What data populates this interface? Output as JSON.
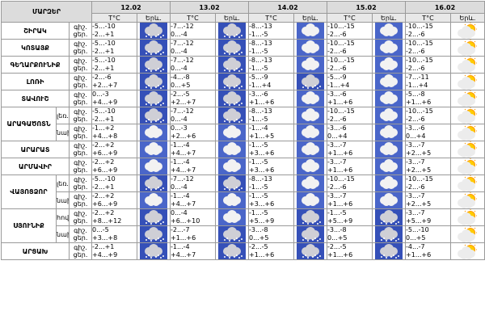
{
  "header": {
    "corner": "ՄԱՐԶԵՐ",
    "temp_label": "T°C",
    "weather_label": "Երև.",
    "dates": [
      "12.02",
      "13.02",
      "14.02",
      "15.02",
      "16.02"
    ]
  },
  "rows": [
    {
      "region": "ՇԻՐԱԿ",
      "sub": "",
      "parts": [
        "գիշ.",
        "ցեր."
      ],
      "days": [
        {
          "night": "-5...-10",
          "day": "-2...+1",
          "icon": "snow-cloud-icon"
        },
        {
          "night": "-7...-12",
          "day": "0...-4",
          "icon": "snow-cloud-icon"
        },
        {
          "night": "-8...-13",
          "day": "-1...-5",
          "icon": "cloud-icon"
        },
        {
          "night": "-10...-15",
          "day": "-2...-6",
          "icon": "cloud-icon"
        },
        {
          "night": "-10...-15",
          "day": "-2...-6",
          "icon": "sun-cloud-icon"
        }
      ]
    },
    {
      "region": "ԿՈՏԱՅՔ",
      "sub": "",
      "parts": [
        "գիշ.",
        "ցեր."
      ],
      "days": [
        {
          "night": "-5...-10",
          "day": "-2...+1",
          "icon": "snow-cloud-icon"
        },
        {
          "night": "-7...-12",
          "day": "0...-4",
          "icon": "snow-cloud-icon"
        },
        {
          "night": "-8...-13",
          "day": "-1...-5",
          "icon": "cloud-icon"
        },
        {
          "night": "-10...-15",
          "day": "-2...-6",
          "icon": "cloud-icon"
        },
        {
          "night": "-10...-15",
          "day": "-2...-6",
          "icon": "sun-cloud-icon"
        }
      ]
    },
    {
      "region": "ԳԵՂԱՐՔՈՒՆԻՔ",
      "sub": "",
      "parts": [
        "գիշ.",
        "ցեր."
      ],
      "days": [
        {
          "night": "-5...-10",
          "day": "-2...+1",
          "icon": "snow-cloud-icon"
        },
        {
          "night": "-7...-12",
          "day": "0...-4",
          "icon": "snow-cloud-icon"
        },
        {
          "night": "-8...-13",
          "day": "-1...-5",
          "icon": "cloud-icon"
        },
        {
          "night": "-10...-15",
          "day": "-2...-6",
          "icon": "cloud-icon"
        },
        {
          "night": "-10...-15",
          "day": "-2...-6",
          "icon": "sun-cloud-icon"
        }
      ]
    },
    {
      "region": "ԼՈՌԻ",
      "sub": "",
      "parts": [
        "գիշ.",
        "ցեր."
      ],
      "days": [
        {
          "night": "-2...-6",
          "day": "+2...+7",
          "icon": "snow-cloud-icon"
        },
        {
          "night": "-4...-8",
          "day": "0...+5",
          "icon": "snow-cloud-icon"
        },
        {
          "night": "-5...-9",
          "day": "-1...+4",
          "icon": "snow-cloud-icon"
        },
        {
          "night": "-5...-9",
          "day": "-1...+4",
          "icon": "cloud-icon"
        },
        {
          "night": "-7...-11",
          "day": "-1...+4",
          "icon": "sun-cloud-icon"
        }
      ]
    },
    {
      "region": "ՏԱՎՈՒՇ",
      "sub": "",
      "parts": [
        "գիշ.",
        "ցեր."
      ],
      "days": [
        {
          "night": "0...-3",
          "day": "+4...+9",
          "icon": "snow-cloud-icon"
        },
        {
          "night": "-2...-5",
          "day": "+2...+7",
          "icon": "snow-cloud-icon"
        },
        {
          "night": "-3...-6",
          "day": "+1...+6",
          "icon": "cloud-icon"
        },
        {
          "night": "-3...-6",
          "day": "+1...+6",
          "icon": "cloud-icon"
        },
        {
          "night": "-5...-8",
          "day": "+1...+6",
          "icon": "sun-cloud-icon"
        }
      ]
    },
    {
      "region": "ԱՐԱԳԱԾՈՏՆ",
      "sub": "լեռ.",
      "parts": [
        "գիշ.",
        "ցեր."
      ],
      "group_start": true,
      "group_span": 2,
      "days": [
        {
          "night": "-5...-10",
          "day": "-2...+1",
          "icon": "snow-cloud-icon"
        },
        {
          "night": "-7...-12",
          "day": "0...-4",
          "icon": "snow-cloud-icon"
        },
        {
          "night": "-8...-13",
          "day": "-1...-5",
          "icon": "cloud-icon"
        },
        {
          "night": "-10...-15",
          "day": "-2...-6",
          "icon": "cloud-icon"
        },
        {
          "night": "-10...-15",
          "day": "-2...-6",
          "icon": "sun-cloud-icon"
        }
      ]
    },
    {
      "region": "",
      "sub": "նախ.",
      "parts": [
        "գիշ.",
        "ցեր."
      ],
      "days": [
        {
          "night": "-1...+2",
          "day": "+4...+8",
          "icon": "cloud-icon"
        },
        {
          "night": "0...-3",
          "day": "+2...+6",
          "icon": "cloud-icon"
        },
        {
          "night": "-1...-4",
          "day": "+1...+5",
          "icon": "cloud-icon"
        },
        {
          "night": "-3...-6",
          "day": "0...+4",
          "icon": "cloud-icon"
        },
        {
          "night": "-3...-6",
          "day": "0...+4",
          "icon": "sun-cloud-icon"
        }
      ]
    },
    {
      "region": "ԱՐԱՐԱՏ",
      "sub": "",
      "parts": [
        "գիշ.",
        "ցեր."
      ],
      "days": [
        {
          "night": "-2...+2",
          "day": "+6...+9",
          "icon": "cloud-icon"
        },
        {
          "night": "-1...-4",
          "day": "+4...+7",
          "icon": "cloud-icon"
        },
        {
          "night": "-1...-5",
          "day": "+3...+6",
          "icon": "cloud-icon"
        },
        {
          "night": "-3...-7",
          "day": "+1...+6",
          "icon": "cloud-icon"
        },
        {
          "night": "-3...-7",
          "day": "+2...+5",
          "icon": "sun-cloud-icon"
        }
      ]
    },
    {
      "region": "ԱՐՄԱՎԻՐ",
      "sub": "",
      "parts": [
        "գիշ.",
        "ցեր."
      ],
      "days": [
        {
          "night": "-2...+2",
          "day": "+6...+9",
          "icon": "cloud-icon"
        },
        {
          "night": "-1...-4",
          "day": "+4...+7",
          "icon": "cloud-icon"
        },
        {
          "night": "-1...-5",
          "day": "+3...+6",
          "icon": "cloud-icon"
        },
        {
          "night": "-3...-7",
          "day": "+1...+6",
          "icon": "cloud-icon"
        },
        {
          "night": "-3...-7",
          "day": "+2...+5",
          "icon": "sun-cloud-icon"
        }
      ]
    },
    {
      "region": "ՎԱՅՈՑՁՈՐ",
      "sub": "լեռ.",
      "parts": [
        "գիշ.",
        "ցեր."
      ],
      "group_start": true,
      "group_span": 2,
      "days": [
        {
          "night": "-5...-10",
          "day": "-2...+1",
          "icon": "snow-cloud-icon"
        },
        {
          "night": "-7...-12",
          "day": "0...-4",
          "icon": "snow-cloud-icon"
        },
        {
          "night": "-8...-13",
          "day": "-1...-5",
          "icon": "cloud-icon"
        },
        {
          "night": "-10...-15",
          "day": "-2...-6",
          "icon": "cloud-icon"
        },
        {
          "night": "-10...-15",
          "day": "-2...-6",
          "icon": "sun-cloud-icon"
        }
      ]
    },
    {
      "region": "",
      "sub": "նախ.",
      "parts": [
        "գիշ.",
        "ցեր."
      ],
      "days": [
        {
          "night": "-2...+2",
          "day": "+6...+9",
          "icon": "cloud-icon"
        },
        {
          "night": "-1...-4",
          "day": "+4...+7",
          "icon": "cloud-icon"
        },
        {
          "night": "-1...-5",
          "day": "+3...+6",
          "icon": "cloud-icon"
        },
        {
          "night": "-3...-7",
          "day": "+1...+6",
          "icon": "cloud-icon"
        },
        {
          "night": "-3...-7",
          "day": "+2...+5",
          "icon": "sun-cloud-icon"
        }
      ]
    },
    {
      "region": "ՍՅՈՒՆԻՔ",
      "sub": "հով.",
      "parts": [
        "գիշ.",
        "ցեր."
      ],
      "group_start": true,
      "group_span": 2,
      "days": [
        {
          "night": "-2...+2",
          "day": "+8...+12",
          "icon": "snow-cloud-icon"
        },
        {
          "night": "0...-4",
          "day": "+6...+10",
          "icon": "cloud-icon"
        },
        {
          "night": "-1...-5",
          "day": "+5...+9",
          "icon": "snow-cloud-icon"
        },
        {
          "night": "-1...-5",
          "day": "+5...+9",
          "icon": "snow-cloud-icon"
        },
        {
          "night": "-3...-7",
          "day": "+5...+9",
          "icon": "sun-cloud-icon"
        }
      ]
    },
    {
      "region": "",
      "sub": "նախ.",
      "parts": [
        "գիշ.",
        "ցեր."
      ],
      "days": [
        {
          "night": "0...-5",
          "day": "+3...+8",
          "icon": "snow-cloud-icon"
        },
        {
          "night": "-2...-7",
          "day": "+1...+6",
          "icon": "snow-cloud-icon"
        },
        {
          "night": "-3...-8",
          "day": "0...+5",
          "icon": "snow-cloud-icon"
        },
        {
          "night": "-3...-8",
          "day": "0...+5",
          "icon": "snow-cloud-icon"
        },
        {
          "night": "-5...-10",
          "day": "0...+5",
          "icon": "sun-cloud-icon"
        }
      ]
    },
    {
      "region": "ԱՐՑԱԽ",
      "sub": "",
      "parts": [
        "գիշ.",
        "ցեր."
      ],
      "days": [
        {
          "night": "-2...+1",
          "day": "+4...+9",
          "icon": "snow-cloud-icon"
        },
        {
          "night": "-1...-4",
          "day": "+4...+7",
          "icon": "snow-cloud-icon"
        },
        {
          "night": "-2...-5",
          "day": "+1...+6",
          "icon": "snow-cloud-icon"
        },
        {
          "night": "-2...-5",
          "day": "+1...+6",
          "icon": "snow-cloud-icon"
        },
        {
          "night": "-4...-7",
          "day": "+1...+6",
          "icon": "sun-cloud-icon"
        }
      ]
    }
  ]
}
